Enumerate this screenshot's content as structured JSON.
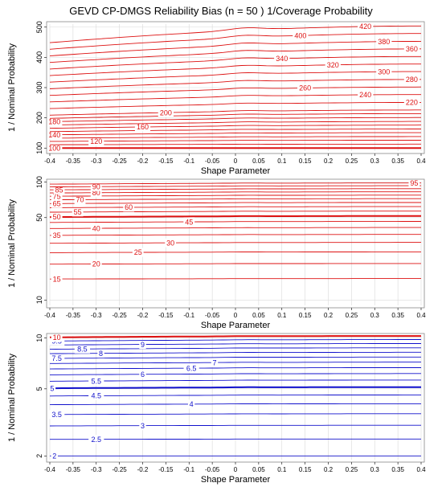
{
  "title": "GEVD CP-DMGS Reliability Bias (n = 50 ) 1/Coverage Probability",
  "colors": {
    "red": "#dd1111",
    "blue": "#1111cc",
    "grid": "#d9d9d9",
    "frame": "#888888"
  },
  "chart_data": [
    {
      "type": "contour",
      "xlabel": "Shape Parameter",
      "ylabel": "1 / Nominal Probability",
      "xlim": [
        -0.4,
        0.4
      ],
      "ylim": [
        90,
        510
      ],
      "x_ticks": [
        -0.4,
        -0.35,
        -0.3,
        -0.25,
        -0.2,
        -0.15,
        -0.1,
        -0.05,
        0,
        0.05,
        0.1,
        0.15,
        0.2,
        0.25,
        0.3,
        0.35,
        0.4
      ],
      "x_tick_labels": [
        "-0.4",
        "-0.35",
        "-0.3",
        "-0.25",
        "-0.2",
        "-0.15",
        "-0.1",
        "-0.05",
        "0",
        "0.05",
        "0.1",
        "0.15",
        "0.2",
        "0.25",
        "0.3",
        "0.35",
        "0.4"
      ],
      "y_ticks": [
        100,
        200,
        300,
        400,
        500
      ],
      "y_tick_labels": [
        "100",
        "200",
        "300",
        "400",
        "500"
      ],
      "color": "#dd1111",
      "reference_level": 100,
      "levels": [
        {
          "level": 100,
          "start": 100,
          "delta": 0,
          "label": "100",
          "lx": -0.39
        },
        {
          "level": 110,
          "start": 110,
          "delta": 3
        },
        {
          "level": 120,
          "start": 120,
          "delta": 6,
          "label": "120",
          "lx": -0.3
        },
        {
          "level": 130,
          "start": 130,
          "delta": 8
        },
        {
          "level": 140,
          "start": 140,
          "delta": 11,
          "label": "140",
          "lx": -0.39
        },
        {
          "level": 150,
          "start": 150,
          "delta": 13
        },
        {
          "level": 160,
          "start": 160,
          "delta": 16,
          "label": "160",
          "lx": -0.2
        },
        {
          "level": 170,
          "start": 170,
          "delta": 18
        },
        {
          "level": 180,
          "start": 180,
          "delta": 21,
          "label": "180",
          "lx": -0.39
        },
        {
          "level": 190,
          "start": 190,
          "delta": 24
        },
        {
          "level": 200,
          "start": 200,
          "delta": 26,
          "label": "200",
          "lx": -0.15
        },
        {
          "level": 220,
          "start": 220,
          "delta": 31,
          "label": "220",
          "lx": 0.38
        },
        {
          "level": 240,
          "start": 240,
          "delta": 37,
          "label": "240",
          "lx": 0.28
        },
        {
          "level": 260,
          "start": 260,
          "delta": 42,
          "label": "260",
          "lx": 0.15
        },
        {
          "level": 280,
          "start": 280,
          "delta": 47,
          "label": "280",
          "lx": 0.38
        },
        {
          "level": 300,
          "start": 300,
          "delta": 53,
          "label": "300",
          "lx": 0.32
        },
        {
          "level": 320,
          "start": 320,
          "delta": 58,
          "label": "320",
          "lx": 0.21
        },
        {
          "level": 340,
          "start": 340,
          "delta": 63,
          "label": "340",
          "lx": 0.1
        },
        {
          "level": 360,
          "start": 360,
          "delta": 68,
          "label": "360",
          "lx": 0.38
        },
        {
          "level": 380,
          "start": 380,
          "delta": 73,
          "label": "380",
          "lx": 0.32
        },
        {
          "level": 400,
          "start": 400,
          "delta": 79,
          "label": "400",
          "lx": 0.14
        },
        {
          "level": 420,
          "start": 420,
          "delta": 84,
          "label": "420",
          "lx": 0.28
        }
      ]
    },
    {
      "type": "contour",
      "xlabel": "Shape Parameter",
      "ylabel": "1 / Nominal Probability",
      "xlim": [
        -0.4,
        0.4
      ],
      "ylim": [
        9,
        101
      ],
      "y_scale": "log",
      "x_ticks": [
        -0.4,
        -0.35,
        -0.3,
        -0.25,
        -0.2,
        -0.15,
        -0.1,
        -0.05,
        0,
        0.05,
        0.1,
        0.15,
        0.2,
        0.25,
        0.3,
        0.35,
        0.4
      ],
      "x_tick_labels": [
        "-0.4",
        "-0.35",
        "-0.3",
        "-0.25",
        "-0.2",
        "-0.15",
        "-0.1",
        "-0.05",
        "0",
        "0.05",
        "0.1",
        "0.15",
        "0.2",
        "0.25",
        "0.3",
        "0.35",
        "0.4"
      ],
      "y_ticks": [
        10,
        50,
        100
      ],
      "y_tick_labels": [
        "10",
        "50",
        "100"
      ],
      "color": "#dd1111",
      "reference_level": 50,
      "levels": [
        {
          "level": 15,
          "start": 15,
          "delta": 0.2,
          "label": "15",
          "lx": -0.385
        },
        {
          "level": 20,
          "start": 20,
          "delta": 0.4,
          "label": "20",
          "lx": -0.3
        },
        {
          "level": 25,
          "start": 25,
          "delta": 0.6,
          "label": "25",
          "lx": -0.21
        },
        {
          "level": 30,
          "start": 30,
          "delta": 0.8,
          "label": "30",
          "lx": -0.14
        },
        {
          "level": 35,
          "start": 35,
          "delta": 1.0,
          "label": "35",
          "lx": -0.385
        },
        {
          "level": 40,
          "start": 40,
          "delta": 1.2,
          "label": "40",
          "lx": -0.3
        },
        {
          "level": 45,
          "start": 45,
          "delta": 1.4,
          "label": "45",
          "lx": -0.1
        },
        {
          "level": 50,
          "start": 50,
          "delta": 1.6,
          "label": "50",
          "lx": -0.385
        },
        {
          "level": 55,
          "start": 55,
          "delta": 1.8,
          "label": "55",
          "lx": -0.34
        },
        {
          "level": 60,
          "start": 60,
          "delta": 2.0,
          "label": "60",
          "lx": -0.23
        },
        {
          "level": 65,
          "start": 65,
          "delta": 2.2,
          "label": "65",
          "lx": -0.385
        },
        {
          "level": 70,
          "start": 70,
          "delta": 2.4,
          "label": "70",
          "lx": -0.335
        },
        {
          "level": 75,
          "start": 75,
          "delta": 2.6,
          "label": "75",
          "lx": -0.385
        },
        {
          "level": 80,
          "start": 80,
          "delta": 2.8,
          "label": "80",
          "lx": -0.3
        },
        {
          "level": 85,
          "start": 85,
          "delta": 3.0,
          "label": "85",
          "lx": -0.38
        },
        {
          "level": 90,
          "start": 90,
          "delta": 3.2,
          "label": "90",
          "lx": -0.3
        },
        {
          "level": 95,
          "start": 95,
          "delta": 3.4,
          "label": "95",
          "lx": 0.385
        }
      ]
    },
    {
      "type": "contour",
      "xlabel": "Shape Parameter",
      "ylabel": "1 / Nominal Probability",
      "xlim": [
        -0.4,
        0.4
      ],
      "ylim": [
        1.9,
        10.3
      ],
      "y_scale": "log",
      "x_ticks": [
        -0.4,
        -0.35,
        -0.3,
        -0.25,
        -0.2,
        -0.15,
        -0.1,
        -0.05,
        0,
        0.05,
        0.1,
        0.15,
        0.2,
        0.25,
        0.3,
        0.35,
        0.4
      ],
      "x_tick_labels": [
        "-0.4",
        "-0.35",
        "-0.3",
        "-0.25",
        "-0.2",
        "-0.15",
        "-0.1",
        "-0.05",
        "0",
        "0.05",
        "0.1",
        "0.15",
        "0.2",
        "0.25",
        "0.3",
        "0.35",
        "0.4"
      ],
      "y_ticks": [
        2,
        5,
        10
      ],
      "y_tick_labels": [
        "2",
        "5",
        "10"
      ],
      "color": "#1111cc",
      "reference_level": 5,
      "levels": [
        {
          "level": 2,
          "start": 2,
          "delta": 0,
          "label": "2",
          "lx": -0.39
        },
        {
          "level": 2.5,
          "start": 2.5,
          "delta": 0.02,
          "label": "2.5",
          "lx": -0.3
        },
        {
          "level": 3,
          "start": 3,
          "delta": 0.04,
          "label": "3",
          "lx": -0.2
        },
        {
          "level": 3.5,
          "start": 3.5,
          "delta": 0.06,
          "label": "3.5",
          "lx": -0.385
        },
        {
          "level": 4,
          "start": 4,
          "delta": 0.08,
          "label": "4",
          "lx": -0.095
        },
        {
          "level": 4.5,
          "start": 4.5,
          "delta": 0.1,
          "label": "4.5",
          "lx": -0.3
        },
        {
          "level": 5,
          "start": 5,
          "delta": 0.12,
          "label": "5",
          "lx": -0.395
        },
        {
          "level": 5.5,
          "start": 5.5,
          "delta": 0.14,
          "label": "5.5",
          "lx": -0.3
        },
        {
          "level": 6,
          "start": 6,
          "delta": 0.16,
          "label": "6",
          "lx": -0.2
        },
        {
          "level": 6.5,
          "start": 6.5,
          "delta": 0.18,
          "label": "6.5",
          "lx": -0.095
        },
        {
          "level": 7,
          "start": 7,
          "delta": 0.2,
          "label": "7",
          "lx": -0.045
        },
        {
          "level": 7.5,
          "start": 7.5,
          "delta": 0.22,
          "label": "7.5",
          "lx": -0.385
        },
        {
          "level": 8,
          "start": 8,
          "delta": 0.24,
          "label": "8",
          "lx": -0.29
        },
        {
          "level": 8.5,
          "start": 8.5,
          "delta": 0.26,
          "label": "8.5",
          "lx": -0.33
        },
        {
          "level": 9,
          "start": 9,
          "delta": 0.28,
          "label": "9",
          "lx": -0.2
        },
        {
          "level": 9.5,
          "start": 9.5,
          "delta": 0.3,
          "label": "9.5",
          "lx": -0.385
        },
        {
          "level": 10,
          "start": 10,
          "delta": 0.3,
          "label": "10",
          "lx": -0.385,
          "color": "#dd1111"
        }
      ]
    }
  ]
}
